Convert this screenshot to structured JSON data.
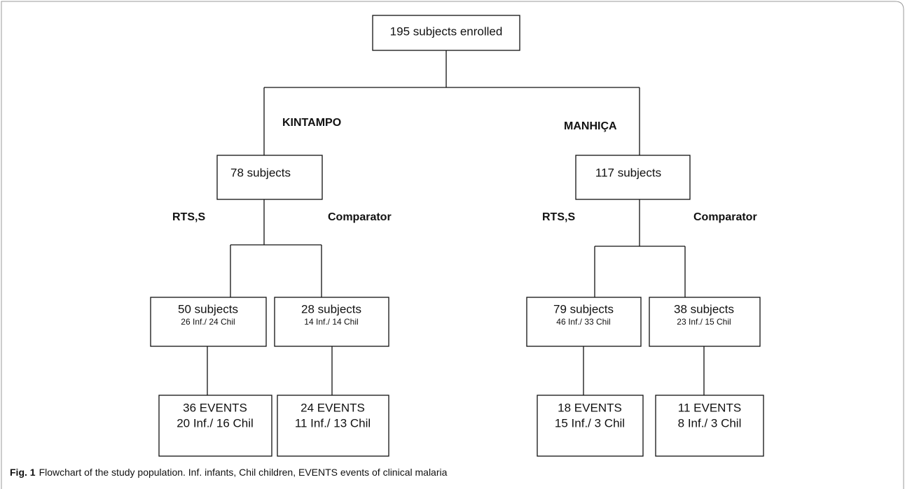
{
  "nodes": [
    {
      "label": "195 subjects enrolled"
    },
    {
      "label": "78 subjects"
    },
    {
      "label": "117 subjects"
    },
    {
      "label": "50 subjects",
      "sublabel": "26 Inf./  24 Chil"
    },
    {
      "label": "28 subjects",
      "sublabel": "14 Inf./  14 Chil"
    },
    {
      "label": "79 subjects",
      "sublabel": "46 Inf./  33 Chil"
    },
    {
      "label": "38 subjects",
      "sublabel": "23 Inf./  15 Chil"
    },
    {
      "label": "36 EVENTS",
      "sublabel": "20 Inf./  16 Chil"
    },
    {
      "label": "24 EVENTS",
      "sublabel": "11 Inf./  13 Chil"
    },
    {
      "label": "18 EVENTS",
      "sublabel": "15 Inf./  3 Chil"
    },
    {
      "label": "11 EVENTS",
      "sublabel": "8 Inf./  3 Chil"
    }
  ],
  "branch_labels": [
    "KINTAMPO",
    "MANHIÇA",
    "RTS,S",
    "Comparator",
    "RTS,S",
    "Comparator"
  ],
  "caption": {
    "label": "Fig. 1",
    "text": "Flowchart of the study population. Inf. infants, Chil children, EVENTS events of clinical malaria"
  }
}
